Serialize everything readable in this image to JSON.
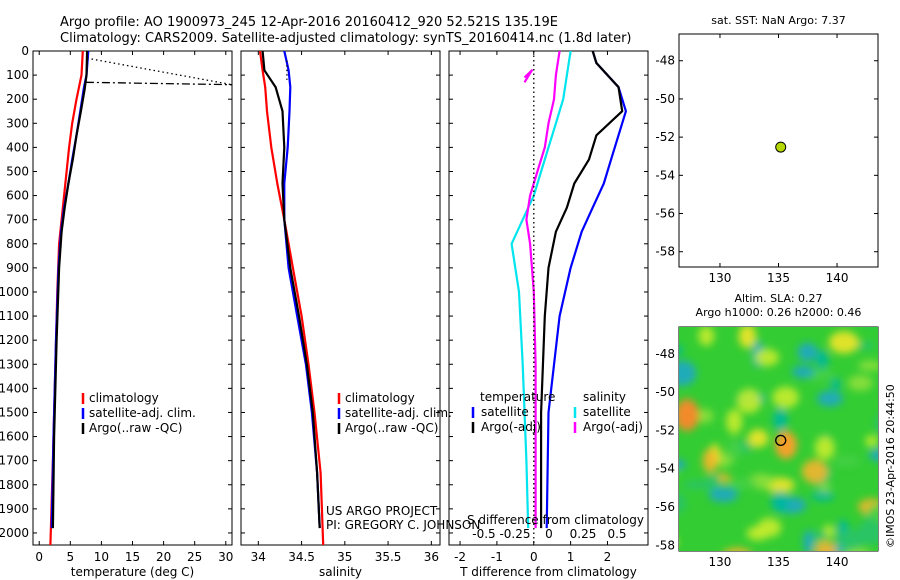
{
  "header": {
    "line1": "Argo profile: AO 1900973_245 12-Apr-2016 20160412_920 52.521S 135.19E",
    "line2": "Climatology: CARS2009. Satellite-adjusted climatology: synTS_20160414.nc (1.8d later)"
  },
  "credit": "©IMOS 23-Apr-2016 20:44:50",
  "colors": {
    "climatology": "#ff0000",
    "satellite": "#0000ff",
    "argo": "#000000",
    "sat_salinity": "#00e5ee",
    "argo_salinity": "#ff00ff",
    "float_marker": "#b5d800"
  },
  "chart_data": [
    {
      "id": "temperature",
      "type": "line",
      "xlabel": "temperature (deg C)",
      "xlim": [
        -1,
        31
      ],
      "xticks": [
        0,
        5,
        10,
        15,
        20,
        25,
        30
      ],
      "ylim": [
        0,
        2050
      ],
      "yticks": [
        0,
        100,
        200,
        300,
        400,
        500,
        600,
        700,
        800,
        900,
        1000,
        1100,
        1200,
        1300,
        1400,
        1500,
        1600,
        1700,
        1800,
        1900,
        2000
      ],
      "legend": [
        "climatology",
        "satellite-adj. clim.",
        "Argo(..raw -QC)"
      ],
      "series": [
        {
          "name": "climatology",
          "color": "#ff0000",
          "x": [
            7.0,
            6.8,
            6.0,
            5.3,
            4.8,
            4.4,
            4.0,
            3.6,
            3.2,
            2.9,
            2.6,
            2.2,
            1.8
          ],
          "y": [
            0,
            100,
            200,
            300,
            400,
            500,
            600,
            700,
            800,
            1000,
            1300,
            1700,
            2050
          ]
        },
        {
          "name": "satellite-adj. clim.",
          "color": "#0000ff",
          "x": [
            7.9,
            7.6,
            7.2,
            6.6,
            6.0,
            5.3,
            4.7,
            4.0,
            3.5,
            3.1,
            2.7,
            2.3,
            2.0
          ],
          "y": [
            0,
            100,
            150,
            250,
            350,
            450,
            550,
            650,
            750,
            900,
            1200,
            1600,
            1980
          ]
        },
        {
          "name": "Argo(..raw -QC)",
          "color": "#000000",
          "x": [
            7.7,
            7.6,
            7.3,
            6.7,
            6.0,
            5.4,
            4.7,
            4.1,
            3.6,
            3.2,
            2.8,
            2.4,
            2.2
          ],
          "y": [
            0,
            100,
            160,
            250,
            350,
            450,
            550,
            650,
            750,
            900,
            1200,
            1600,
            1980
          ]
        },
        {
          "name": "raw-dotted",
          "color": "#000000",
          "style": "dotted",
          "x": [
            7.7,
            31
          ],
          "y": [
            30,
            140
          ]
        },
        {
          "name": "raw-dashdot",
          "color": "#000000",
          "style": "dashdot",
          "x": [
            7.5,
            31
          ],
          "y": [
            130,
            140
          ]
        }
      ]
    },
    {
      "id": "salinity",
      "type": "line",
      "xlabel": "salinity",
      "xlim": [
        33.8,
        36.1
      ],
      "xticks": [
        34,
        34.5,
        35,
        35.5,
        36
      ],
      "xticklabels": [
        "34",
        "34.5",
        "35",
        "35.5",
        "36"
      ],
      "ylim": [
        0,
        2050
      ],
      "legend": [
        "climatology",
        "satellite-adj. clim.",
        "Argo(..raw -QC)"
      ],
      "annotation": [
        "US ARGO PROJECT",
        "PI: GREGORY C. JOHNSON"
      ],
      "series": [
        {
          "name": "climatology",
          "color": "#ff0000",
          "x": [
            34.02,
            34.05,
            34.08,
            34.1,
            34.15,
            34.22,
            34.3,
            34.4,
            34.5,
            34.58,
            34.65,
            34.72,
            34.75
          ],
          "y": [
            0,
            80,
            150,
            250,
            400,
            550,
            700,
            900,
            1100,
            1300,
            1500,
            1750,
            2050
          ]
        },
        {
          "name": "satellite-adj. clim.",
          "color": "#0000ff",
          "x": [
            34.3,
            34.35,
            34.37,
            34.36,
            34.34,
            34.3,
            34.3,
            34.35,
            34.45,
            34.55,
            34.62,
            34.68,
            34.71
          ],
          "y": [
            0,
            80,
            150,
            250,
            400,
            550,
            700,
            900,
            1100,
            1300,
            1500,
            1750,
            1980
          ]
        },
        {
          "name": "Argo(..raw -QC)",
          "color": "#000000",
          "x": [
            34.05,
            34.07,
            34.2,
            34.28,
            34.3,
            34.28,
            34.3,
            34.37,
            34.47,
            34.56,
            34.63,
            34.68,
            34.71
          ],
          "y": [
            0,
            80,
            150,
            250,
            400,
            550,
            700,
            900,
            1100,
            1300,
            1500,
            1750,
            1980
          ]
        },
        {
          "name": "raw-dotted",
          "color": "#000000",
          "style": "dotted",
          "x": [
            34.33,
            34.33
          ],
          "y": [
            40,
            120
          ]
        }
      ]
    },
    {
      "id": "difference",
      "type": "line",
      "xlabel": "T difference from climatology",
      "secondary_xlabel": "S difference from climatology",
      "xlim": [
        -2.3,
        3.1
      ],
      "xticks": [
        -2,
        -1,
        0,
        1,
        2
      ],
      "secondary_xticks": [
        "-0.5",
        "-0.25",
        "0",
        "0.25",
        "0.5"
      ],
      "ylim": [
        0,
        2050
      ],
      "legend_left_title": "temperature",
      "legend_right_title": "salinity",
      "legend": [
        "satellite",
        "Argo(-adj)",
        "satellite",
        "Argo(-adj)"
      ],
      "series": [
        {
          "name": "T satellite",
          "color": "#0000ff",
          "x": [
            1.6,
            1.7,
            2.3,
            2.5,
            2.3,
            2.1,
            1.9,
            1.6,
            1.3,
            1.0,
            0.7,
            0.4,
            0.35
          ],
          "y": [
            0,
            50,
            150,
            250,
            350,
            450,
            550,
            650,
            750,
            900,
            1100,
            1500,
            1980
          ]
        },
        {
          "name": "T Argo(-adj)",
          "color": "#000000",
          "x": [
            1.6,
            1.7,
            2.3,
            2.4,
            1.7,
            1.5,
            1.1,
            0.9,
            0.6,
            0.4,
            0.3,
            0.2,
            0.2
          ],
          "y": [
            0,
            50,
            150,
            250,
            350,
            450,
            550,
            650,
            750,
            900,
            1100,
            1500,
            1980
          ]
        },
        {
          "name": "S satellite",
          "color": "#00e5ee",
          "x": [
            1.0,
            0.9,
            0.8,
            0.6,
            0.4,
            0.2,
            0.0,
            -0.3,
            -0.6,
            -0.4,
            -0.3,
            -0.2,
            -0.15
          ],
          "y": [
            0,
            100,
            200,
            300,
            400,
            500,
            600,
            700,
            800,
            1000,
            1300,
            1700,
            1980
          ]
        },
        {
          "name": "S Argo(-adj)",
          "color": "#ff00ff",
          "x": [
            0.7,
            0.6,
            0.55,
            0.4,
            0.3,
            0.1,
            -0.1,
            -0.2,
            -0.1,
            0.0,
            0.05,
            0.05,
            0.05
          ],
          "y": [
            0,
            100,
            200,
            300,
            400,
            500,
            600,
            700,
            800,
            1000,
            1300,
            1700,
            1980
          ]
        },
        {
          "name": "S Argo(-adj) raw",
          "color": "#ff00ff",
          "x": [
            -0.25,
            -0.05,
            -0.25
          ],
          "y": [
            110,
            80,
            130
          ]
        },
        {
          "name": "zero-line",
          "color": "#000000",
          "style": "dotted",
          "x": [
            0,
            0
          ],
          "y": [
            0,
            2050
          ]
        }
      ]
    },
    {
      "id": "sst-map",
      "type": "scatter",
      "title": "sat. SST: NaN Argo: 7.37",
      "xlim": [
        126.5,
        143.5
      ],
      "ylim": [
        -58.8,
        -46.6
      ],
      "xticks": [
        130,
        135,
        140
      ],
      "yticks": [
        -48,
        -50,
        -52,
        -54,
        -56,
        -58
      ],
      "point": {
        "lon": 135.19,
        "lat": -52.521
      }
    },
    {
      "id": "sla-map",
      "type": "heatmap",
      "title_line1": "Altim. SLA: 0.27",
      "title_line2": "Argo h1000: 0.26 h2000: 0.46",
      "xlim": [
        126.5,
        143.5
      ],
      "ylim": [
        -58.3,
        -46.6
      ],
      "xticks": [
        130,
        135,
        140
      ],
      "yticks": [
        -48,
        -50,
        -52,
        -54,
        -56,
        -58
      ],
      "point": {
        "lon": 135.19,
        "lat": -52.521
      }
    }
  ]
}
